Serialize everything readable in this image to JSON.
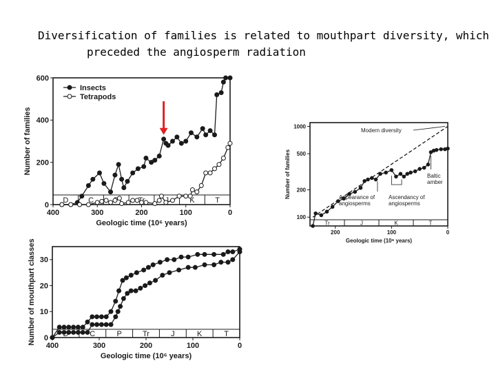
{
  "slide": {
    "title_line1": "Diversification of families is related to mouthpart diversity, which",
    "title_line2": "preceded the angiosperm radiation"
  },
  "colors": {
    "arrow": "#e02020",
    "ink": "#1a1a1a"
  },
  "chart_data": [
    {
      "type": "line",
      "xlabel": "Geologic time (10⁶ years)",
      "ylabel": "Number of families",
      "xlim": [
        400,
        0
      ],
      "ylim": [
        0,
        600
      ],
      "x_ticks": [
        400,
        300,
        200,
        100,
        0
      ],
      "y_ticks": [
        0,
        200,
        400,
        600
      ],
      "periods": [
        "D",
        "C",
        "P",
        "Tr",
        "J",
        "K",
        "T"
      ],
      "legend": "top-left",
      "series": [
        {
          "name": "Insects",
          "marker": "filled",
          "x": [
            380,
            360,
            345,
            335,
            320,
            310,
            295,
            285,
            270,
            260,
            252,
            245,
            240,
            232,
            220,
            208,
            195,
            190,
            178,
            170,
            160,
            150,
            145,
            140,
            130,
            120,
            110,
            100,
            88,
            75,
            62,
            55,
            45,
            35,
            30,
            20,
            15,
            10,
            0
          ],
          "y": [
            0,
            0,
            10,
            40,
            90,
            120,
            150,
            100,
            60,
            140,
            190,
            120,
            80,
            110,
            150,
            170,
            180,
            220,
            200,
            210,
            230,
            310,
            290,
            280,
            300,
            320,
            290,
            300,
            340,
            320,
            360,
            330,
            350,
            330,
            520,
            530,
            580,
            600,
            600
          ]
        },
        {
          "name": "Tetrapods",
          "marker": "open",
          "x": [
            380,
            360,
            340,
            320,
            300,
            290,
            280,
            270,
            260,
            250,
            245,
            230,
            220,
            210,
            200,
            190,
            170,
            160,
            155,
            145,
            130,
            115,
            100,
            90,
            85,
            75,
            65,
            55,
            45,
            35,
            25,
            15,
            5,
            0
          ],
          "y": [
            0,
            0,
            0,
            0,
            10,
            15,
            20,
            10,
            20,
            30,
            5,
            10,
            20,
            20,
            10,
            10,
            5,
            20,
            40,
            10,
            20,
            40,
            40,
            40,
            70,
            60,
            90,
            150,
            150,
            170,
            190,
            220,
            270,
            290
          ]
        }
      ]
    },
    {
      "type": "line",
      "xlabel": "Geologic time (10⁶ years)",
      "ylabel": "Number of mouthpart classes",
      "xlim": [
        400,
        0
      ],
      "ylim": [
        0,
        35
      ],
      "x_ticks": [
        400,
        300,
        200,
        100,
        0
      ],
      "y_ticks": [
        0,
        10,
        20,
        30
      ],
      "periods": [
        "D",
        "C",
        "P",
        "Tr",
        "J",
        "K",
        "T"
      ],
      "series": [
        {
          "marker": "filled",
          "x": [
            400,
            385,
            375,
            365,
            355,
            345,
            335,
            325,
            315,
            305,
            295,
            285,
            275,
            265,
            260,
            255,
            248,
            240,
            232,
            222,
            212,
            202,
            192,
            180,
            165,
            150,
            130,
            110,
            95,
            75,
            55,
            40,
            25,
            15,
            0
          ],
          "y": [
            0,
            2,
            2,
            2,
            2,
            2,
            2,
            2,
            5,
            5,
            5,
            5,
            5,
            8,
            10,
            12,
            15,
            17,
            18,
            18,
            19,
            20,
            21,
            22,
            24,
            25,
            26,
            27,
            27,
            28,
            28,
            29,
            29,
            30,
            33
          ]
        },
        {
          "marker": "filled",
          "x": [
            400,
            385,
            375,
            365,
            355,
            345,
            335,
            325,
            315,
            305,
            295,
            285,
            275,
            265,
            258,
            250,
            242,
            232,
            220,
            205,
            195,
            185,
            170,
            155,
            140,
            125,
            110,
            90,
            75,
            55,
            35,
            25,
            15,
            0
          ],
          "y": [
            0,
            4,
            4,
            4,
            4,
            4,
            4,
            6,
            8,
            8,
            8,
            8,
            10,
            14,
            18,
            22,
            23,
            24,
            25,
            26,
            27,
            28,
            29,
            30,
            30,
            31,
            31,
            32,
            32,
            32,
            32,
            33,
            33,
            34
          ]
        }
      ]
    },
    {
      "type": "line",
      "xlabel": "Geologic time (10⁶ years)",
      "ylabel": "Number of families",
      "x_ticks": [
        200,
        100,
        0
      ],
      "y_ticks": [
        100,
        200,
        500,
        1000
      ],
      "xlim": [
        245,
        0
      ],
      "y_scale": "log",
      "ylim": [
        80,
        1100
      ],
      "periods": [
        "Tr",
        "J",
        "K",
        "T"
      ],
      "annotations": {
        "modern": "Modern diversity",
        "appearance": "Appearance of angiosperms",
        "ascendancy": "Ascendancy of angiosperms",
        "amber": "Baltic amber"
      },
      "annotation_lines": {
        "appearance": [
          "Appearance of",
          "angiosperms"
        ],
        "ascendancy": [
          "Ascendancy of",
          "angiosperms"
        ],
        "amber": [
          "Baltic",
          "amber"
        ]
      },
      "series": [
        {
          "marker": "filled",
          "x": [
            240,
            235,
            225,
            215,
            205,
            195,
            185,
            175,
            165,
            155,
            148,
            142,
            135,
            128,
            120,
            110,
            100,
            92,
            84,
            78,
            72,
            66,
            58,
            50,
            42,
            35,
            30,
            25,
            20,
            12,
            5,
            0
          ],
          "y": [
            80,
            110,
            105,
            115,
            130,
            150,
            160,
            180,
            190,
            210,
            250,
            260,
            270,
            260,
            300,
            310,
            330,
            280,
            300,
            280,
            300,
            310,
            320,
            340,
            350,
            380,
            520,
            540,
            550,
            560,
            560,
            570
          ]
        },
        {
          "marker": "none",
          "dashed": true,
          "x": [
            240,
            0
          ],
          "y": [
            100,
            1000
          ]
        }
      ]
    }
  ]
}
